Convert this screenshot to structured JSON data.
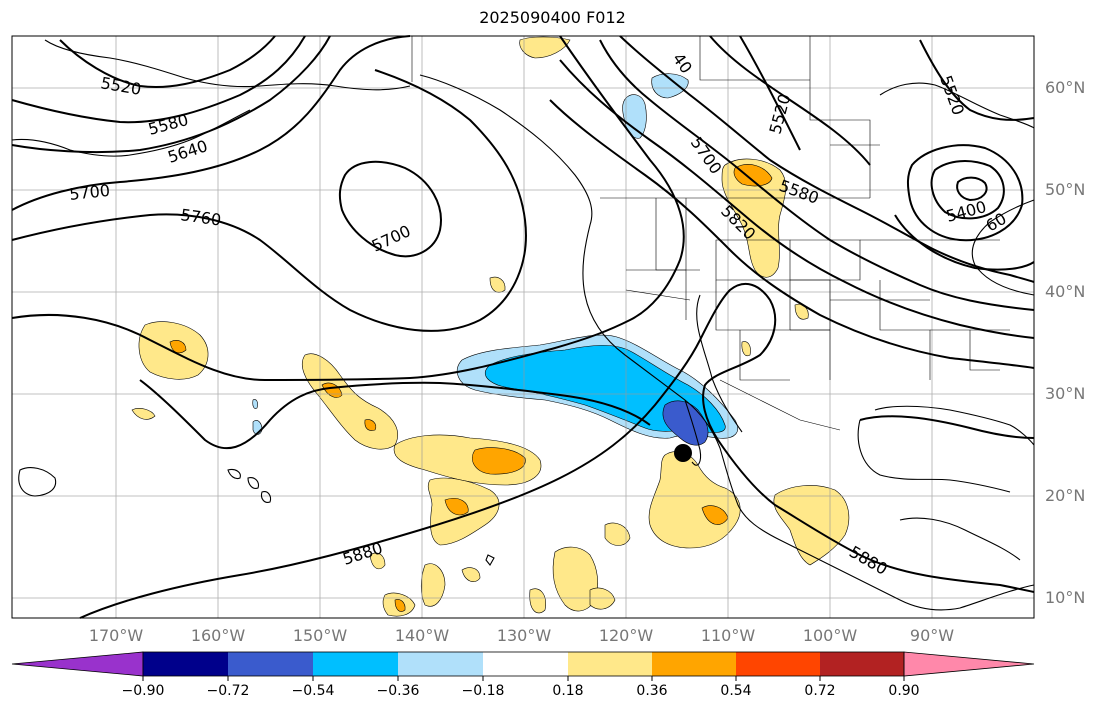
{
  "title": "2025090400 F012",
  "lon_labels": [
    "170°W",
    "160°W",
    "150°W",
    "140°W",
    "130°W",
    "120°W",
    "110°W",
    "100°W",
    "90°W"
  ],
  "lat_labels": [
    "60°N",
    "50°N",
    "40°N",
    "30°N",
    "20°N",
    "10°N"
  ],
  "contour_labels": [
    "5520",
    "5580",
    "5640",
    "5700",
    "5760",
    "5700",
    "40",
    "5700",
    "5820",
    "5520",
    "5580",
    "5520",
    "5400",
    "60",
    "5880",
    "5880"
  ],
  "colorbar": {
    "ticks": [
      "−0.90",
      "−0.72",
      "−0.54",
      "−0.36",
      "−0.18",
      "0.18",
      "0.36",
      "0.54",
      "0.72",
      "0.90"
    ],
    "colors": [
      "#9932cc",
      "#00008b",
      "#3a5bcd",
      "#00bfff",
      "#b0e0fa",
      "#ffffff",
      "#ffe88a",
      "#ffa500",
      "#ff4500",
      "#b22222",
      "#ff88aa"
    ]
  },
  "colors": {
    "neg_light": "#b0e0fa",
    "neg_mid": "#00bfff",
    "neg_dark": "#3a5bcd",
    "pos_light": "#ffe88a",
    "pos_mid": "#ffa500",
    "pos_dark": "#ff4500"
  },
  "marker": {
    "lon": -115,
    "lat": 24
  }
}
